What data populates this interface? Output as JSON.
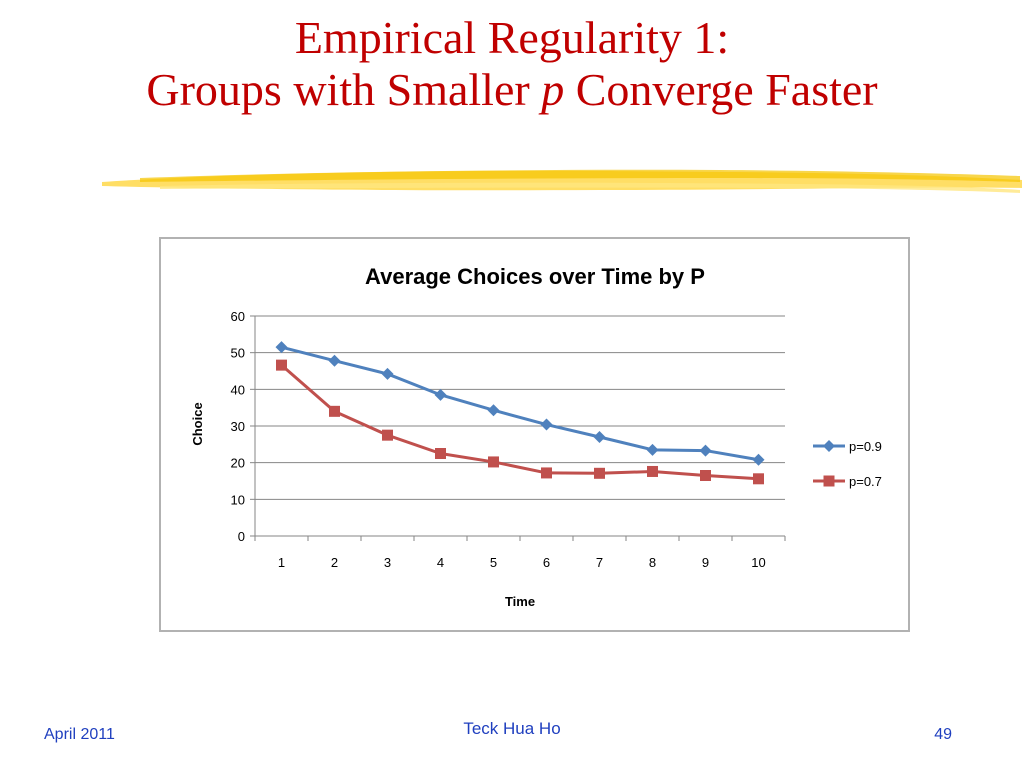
{
  "slide": {
    "title_line1": "Empirical Regularity 1:",
    "title_line2_a": "Groups with Smaller ",
    "title_line2_italic": "p",
    "title_line2_b": " Converge Faster",
    "footer_date": "April 2011",
    "footer_author": "Teck Hua Ho",
    "page_number": "49",
    "title_color": "#c00000",
    "footer_color": "#1f3fbf",
    "underline_color": "#ffd84a"
  },
  "chart_data": {
    "type": "line",
    "title": "Average Choices over Time by P",
    "xlabel": "Time",
    "ylabel": "Choice",
    "categories": [
      "1",
      "2",
      "3",
      "4",
      "5",
      "6",
      "7",
      "8",
      "9",
      "10"
    ],
    "ylim": [
      0,
      60
    ],
    "yticks": [
      0,
      10,
      20,
      30,
      40,
      50,
      60
    ],
    "grid": true,
    "legend_position": "right",
    "series": [
      {
        "name": "p=0.9",
        "color": "#4f81bd",
        "marker": "diamond",
        "values": [
          51.5,
          47.8,
          44.2,
          38.5,
          34.3,
          30.4,
          27.0,
          23.5,
          23.3,
          20.8
        ]
      },
      {
        "name": "p=0.7",
        "color": "#c0504d",
        "marker": "square",
        "values": [
          46.6,
          34.0,
          27.5,
          22.5,
          20.2,
          17.2,
          17.1,
          17.6,
          16.5,
          15.6
        ]
      }
    ]
  }
}
